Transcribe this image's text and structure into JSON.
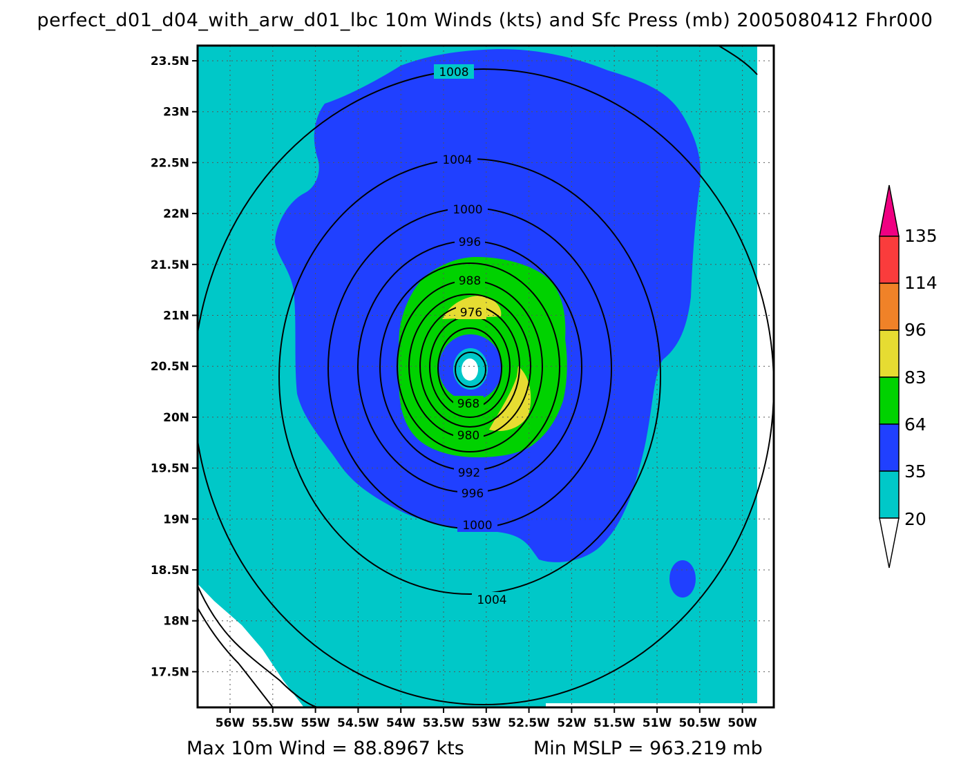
{
  "title": "perfect_d01_d04_with_arw_d01_lbc 10m Winds (kts) and Sfc Press (mb) 2005080412 Fhr000",
  "footer": {
    "max_wind": "Max 10m Wind = 88.8967 kts",
    "min_mslp": "Min MSLP = 963.219 mb"
  },
  "map": {
    "lat_labels": [
      "23.5N",
      "23N",
      "22.5N",
      "22N",
      "21.5N",
      "21N",
      "20.5N",
      "20N",
      "19.5N",
      "19N",
      "18.5N",
      "18N",
      "17.5N"
    ],
    "lon_labels": [
      "56W",
      "55.5W",
      "55W",
      "54.5W",
      "54W",
      "53.5W",
      "53W",
      "52.5W",
      "52W",
      "51.5W",
      "51W",
      "50.5W",
      "50W"
    ],
    "contour_labels": [
      "1008",
      "1004",
      "1000",
      "996",
      "988",
      "976",
      "968",
      "980",
      "992",
      "996",
      "1000",
      "1004"
    ],
    "colors": {
      "below_20": "#ffffff",
      "c20_35": "#00c8c8",
      "c35_64": "#2040ff",
      "c64_83": "#00d200",
      "c83_96": "#e6dc32",
      "c96_114": "#f08228",
      "c114_135": "#fa3c3c",
      "above_135": "#f00082"
    }
  },
  "colorbar": {
    "labels": [
      "135",
      "114",
      "96",
      "83",
      "64",
      "35",
      "20"
    ]
  }
}
